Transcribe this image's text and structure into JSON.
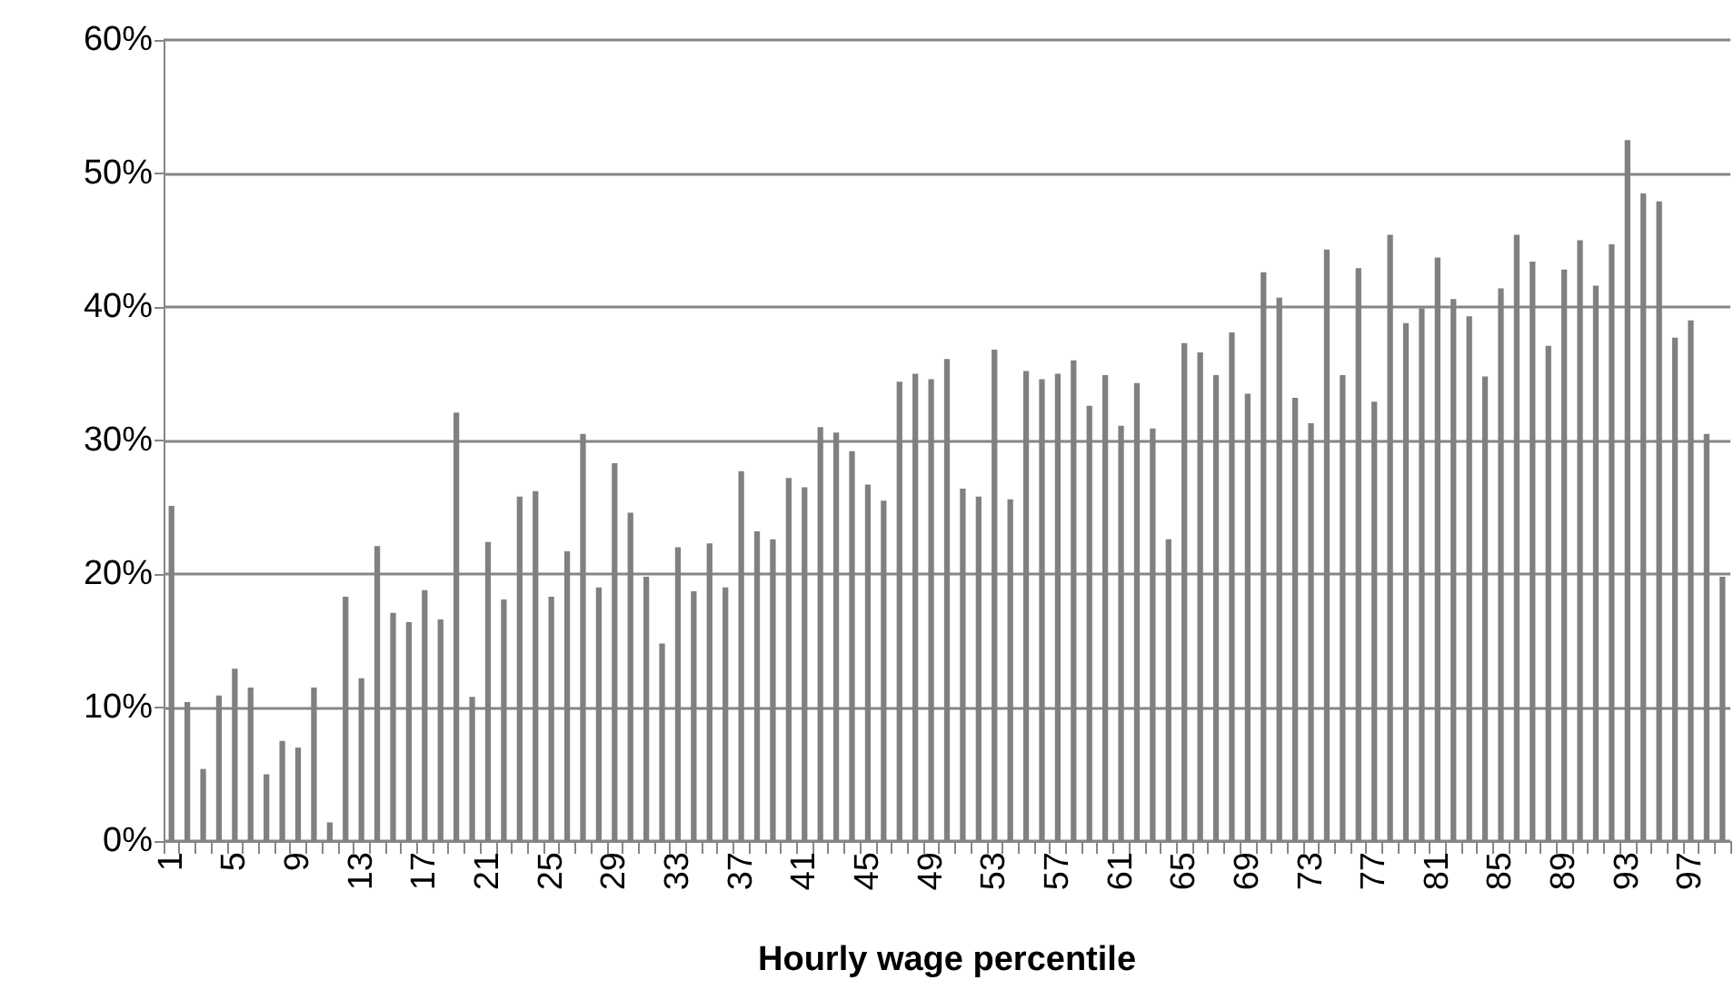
{
  "chart_data": {
    "type": "bar",
    "xlabel": "Hourly wage percentile",
    "categories": [
      "1",
      null,
      null,
      null,
      "5",
      null,
      null,
      null,
      "9",
      null,
      null,
      null,
      "13",
      null,
      null,
      null,
      "17",
      null,
      null,
      null,
      "21",
      null,
      null,
      null,
      "25",
      null,
      null,
      null,
      "29",
      null,
      null,
      null,
      "33",
      null,
      null,
      null,
      "37",
      null,
      null,
      null,
      "41",
      null,
      null,
      null,
      "45",
      null,
      null,
      null,
      "49",
      null,
      null,
      null,
      "53",
      null,
      null,
      null,
      "57",
      null,
      null,
      null,
      "61",
      null,
      null,
      null,
      "65",
      null,
      null,
      null,
      "69",
      null,
      null,
      null,
      "73",
      null,
      null,
      null,
      "77",
      null,
      null,
      null,
      "81",
      null,
      null,
      null,
      "85",
      null,
      null,
      null,
      "89",
      null,
      null,
      null,
      "93",
      null,
      null,
      null,
      "97",
      null,
      null
    ],
    "values": [
      25.1,
      10.4,
      5.4,
      10.9,
      12.9,
      11.5,
      5.0,
      7.5,
      7.0,
      11.5,
      1.4,
      18.3,
      12.2,
      22.1,
      17.1,
      16.4,
      18.8,
      16.6,
      32.1,
      10.8,
      22.4,
      18.1,
      25.8,
      26.2,
      18.3,
      21.7,
      30.5,
      19.0,
      28.3,
      24.6,
      19.8,
      14.8,
      22.0,
      18.7,
      22.3,
      19.0,
      27.7,
      23.2,
      22.6,
      27.2,
      26.5,
      31.0,
      30.6,
      29.2,
      26.7,
      25.5,
      34.4,
      35.0,
      34.6,
      36.1,
      26.4,
      25.8,
      36.8,
      25.6,
      35.2,
      34.6,
      35.0,
      36.0,
      32.6,
      34.9,
      31.1,
      34.3,
      30.9,
      22.6,
      37.3,
      36.6,
      34.9,
      38.1,
      33.5,
      42.6,
      40.7,
      33.2,
      31.3,
      44.3,
      34.9,
      42.9,
      32.9,
      45.4,
      38.8,
      39.9,
      43.7,
      40.6,
      39.3,
      34.8,
      41.4,
      45.4,
      43.4,
      37.1,
      42.8,
      45.0,
      41.6,
      44.7,
      52.5,
      48.5,
      47.9,
      37.7,
      39.0,
      30.5,
      19.8
    ],
    "color": "#808080",
    "ylim": [
      0,
      60
    ],
    "yticks": [
      {
        "value": 0,
        "label": "0%"
      },
      {
        "value": 10,
        "label": "10%"
      },
      {
        "value": 20,
        "label": "20%"
      },
      {
        "value": 30,
        "label": "30%"
      },
      {
        "value": 40,
        "label": "40%"
      },
      {
        "value": 50,
        "label": "50%"
      },
      {
        "value": 60,
        "label": "60%"
      }
    ],
    "grid": "y"
  }
}
